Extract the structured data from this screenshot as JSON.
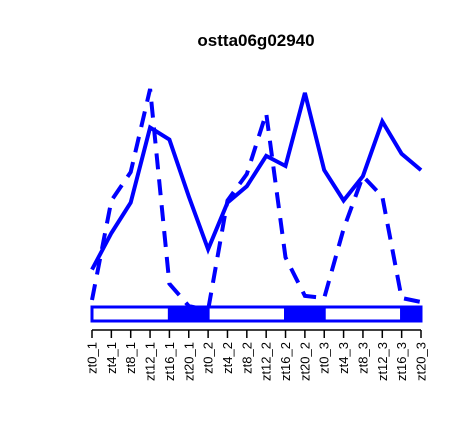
{
  "chart_data": {
    "type": "line",
    "title": "ostta06g02940",
    "xlabel": "",
    "ylabel": "",
    "categories": [
      "zt0_1",
      "zt4_1",
      "zt8_1",
      "zt12_1",
      "zt16_1",
      "zt20_1",
      "zt0_2",
      "zt4_2",
      "zt8_2",
      "zt12_2",
      "zt16_2",
      "zt20_2",
      "zt0_3",
      "zt4_3",
      "zt8_3",
      "zt12_3",
      "zt16_3",
      "zt20_3"
    ],
    "ylim": [
      0,
      100
    ],
    "grid": false,
    "series": [
      {
        "style": "solid",
        "color": "#0000ff",
        "values": [
          15,
          33,
          48,
          85,
          79,
          51,
          25,
          48,
          56,
          71,
          66,
          102,
          64,
          49,
          61,
          88,
          72,
          64
        ]
      },
      {
        "style": "dashed",
        "color": "#0000ff",
        "values": [
          0,
          49,
          63,
          104,
          8,
          -3,
          -5,
          49,
          62,
          92,
          21,
          2,
          1,
          35,
          61,
          51,
          1,
          -1
        ]
      }
    ],
    "light_dark_bar": {
      "segments": [
        {
          "from": 0,
          "to": 4,
          "fill": "#ffffff"
        },
        {
          "from": 4,
          "to": 6,
          "fill": "#0000ff"
        },
        {
          "from": 6,
          "to": 10,
          "fill": "#ffffff"
        },
        {
          "from": 10,
          "to": 12,
          "fill": "#0000ff"
        },
        {
          "from": 12,
          "to": 16,
          "fill": "#ffffff"
        },
        {
          "from": 16,
          "to": 17,
          "fill": "#0000ff"
        }
      ],
      "stroke": "#0000ff"
    }
  }
}
